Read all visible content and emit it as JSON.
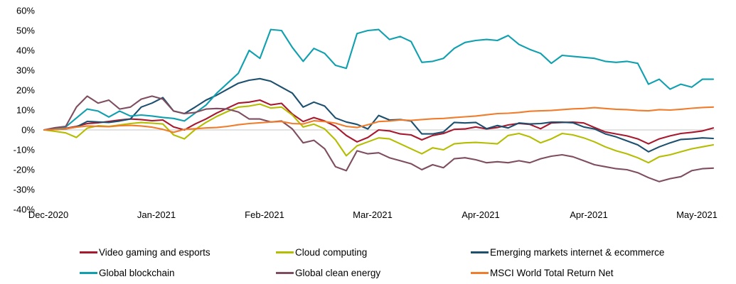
{
  "chart_data": {
    "type": "line",
    "title": "",
    "xlabel": "",
    "ylabel": "",
    "grid": "horizontal zero line only",
    "legend_position": "bottom",
    "y_axis": {
      "tick_labels": [
        "60%",
        "50%",
        "40%",
        "30%",
        "20%",
        "10%",
        "0%",
        "-10%",
        "-20%",
        "-30%",
        "-40%"
      ],
      "tick_values": [
        60,
        50,
        40,
        30,
        20,
        10,
        0,
        -10,
        -20,
        -30,
        -40
      ],
      "range": [
        -40,
        60
      ],
      "unit": "%"
    },
    "x_axis": {
      "tick_labels": [
        "Dec-2020",
        "Jan-2021",
        "Feb-2021",
        "Mar-2021",
        "Apr-2021",
        "Apr-2021",
        "May-2021"
      ]
    },
    "series": [
      {
        "name": "Video gaming and esports",
        "color": "#A6192E",
        "values": [
          0,
          0.3,
          0.8,
          1.8,
          3.2,
          3.6,
          4.3,
          5.0,
          5.5,
          5.2,
          4.6,
          5.0,
          1.5,
          0.0,
          3.0,
          5.5,
          8.5,
          11.0,
          13.5,
          14.0,
          15.0,
          12.6,
          13.4,
          8.0,
          4.2,
          6.2,
          4.5,
          1.8,
          -2.8,
          -6.0,
          -3.8,
          0.0,
          -0.5,
          -2.0,
          -2.5,
          -5.0,
          -2.8,
          -1.8,
          0.3,
          0.5,
          1.5,
          0.5,
          1.2,
          2.5,
          3.3,
          2.8,
          0.6,
          3.5,
          3.8,
          3.9,
          3.5,
          1.2,
          -1.0,
          -2.0,
          -3.0,
          -4.5,
          -7.0,
          -4.5,
          -3.0,
          -1.8,
          -1.2,
          -0.5,
          1.0
        ]
      },
      {
        "name": "Cloud computing",
        "color": "#B4BD00",
        "values": [
          0,
          -0.7,
          -1.5,
          -3.8,
          0.9,
          2.1,
          1.8,
          2.5,
          3.2,
          3.7,
          3.4,
          3.0,
          -2.5,
          -4.5,
          0.2,
          3.8,
          6.8,
          9.3,
          11.5,
          12.0,
          13.0,
          11.0,
          11.5,
          7.5,
          1.5,
          2.9,
          0.5,
          -5.0,
          -13.0,
          -8.0,
          -6.0,
          -4.0,
          -4.5,
          -7.0,
          -9.5,
          -12.0,
          -9.0,
          -10.0,
          -7.0,
          -6.5,
          -6.3,
          -6.6,
          -7.0,
          -2.8,
          -1.8,
          -3.5,
          -6.5,
          -4.5,
          -1.8,
          -2.5,
          -4.0,
          -6.0,
          -8.5,
          -10.5,
          -12.0,
          -14.0,
          -16.5,
          -13.5,
          -12.5,
          -11.0,
          -9.5,
          -8.5,
          -7.5
        ]
      },
      {
        "name": "Emerging markets internet & ecommerce",
        "color": "#1D506F",
        "values": [
          0,
          0.2,
          0.5,
          1.5,
          4.3,
          4.0,
          3.8,
          4.5,
          5.5,
          11.5,
          13.5,
          16.3,
          9.5,
          8.2,
          11.5,
          15.0,
          17.5,
          20.5,
          23.5,
          25.0,
          25.8,
          24.5,
          21.5,
          18.5,
          11.5,
          14.0,
          12.0,
          6.0,
          4.0,
          2.8,
          0.5,
          7.3,
          5.0,
          5.2,
          4.5,
          -2.0,
          -2.0,
          -1.0,
          3.8,
          3.5,
          3.8,
          0.6,
          2.2,
          1.0,
          3.5,
          3.0,
          3.2,
          3.9,
          3.9,
          3.6,
          1.5,
          0.5,
          -2.0,
          -3.5,
          -5.5,
          -7.5,
          -11.0,
          -8.5,
          -6.5,
          -4.8,
          -4.5,
          -4.0,
          -4.3
        ]
      },
      {
        "name": "Global blockchain",
        "color": "#0FA0AF",
        "values": [
          0,
          0.7,
          1.5,
          6.0,
          10.5,
          9.5,
          6.5,
          9.5,
          7.0,
          7.5,
          7.0,
          6.3,
          5.8,
          4.5,
          8.5,
          12.5,
          18.5,
          23.5,
          28.5,
          40.0,
          36.0,
          50.5,
          50.0,
          41.5,
          34.5,
          41.0,
          38.5,
          32.5,
          31.0,
          48.5,
          50.0,
          50.5,
          45.5,
          47.0,
          44.5,
          34.0,
          34.5,
          36.0,
          41.0,
          44.0,
          45.0,
          45.5,
          45.0,
          47.5,
          43.0,
          40.5,
          38.5,
          33.5,
          37.5,
          37.0,
          36.5,
          36.0,
          34.5,
          34.0,
          34.5,
          33.5,
          23.0,
          25.5,
          20.5,
          23.0,
          21.5,
          25.5,
          25.5
        ]
      },
      {
        "name": "Global clean energy",
        "color": "#7E4E60",
        "values": [
          0,
          1.1,
          1.8,
          11.5,
          17.0,
          13.5,
          15.0,
          10.5,
          11.5,
          15.5,
          17.0,
          15.5,
          9.5,
          8.2,
          8.8,
          10.5,
          10.8,
          10.5,
          9.0,
          5.5,
          5.5,
          4.0,
          4.5,
          0.5,
          -6.5,
          -5.2,
          -9.5,
          -18.5,
          -20.5,
          -10.5,
          -12.0,
          -11.5,
          -14.0,
          -15.5,
          -17.0,
          -20.0,
          -17.5,
          -19.0,
          -14.5,
          -14.0,
          -15.0,
          -16.5,
          -16.0,
          -16.5,
          -15.5,
          -16.5,
          -14.5,
          -13.2,
          -12.5,
          -13.5,
          -15.5,
          -17.5,
          -18.5,
          -19.5,
          -20.0,
          -21.5,
          -24.0,
          -26.0,
          -24.5,
          -23.5,
          -20.5,
          -19.5,
          -19.2
        ]
      },
      {
        "name": "MSCI World Total Return Net",
        "color": "#EF7D2C",
        "values": [
          0,
          0.2,
          0.6,
          1.4,
          2.0,
          1.8,
          1.6,
          2.1,
          2.3,
          2.0,
          1.4,
          0.3,
          -1.2,
          0.3,
          0.6,
          1.0,
          1.2,
          1.8,
          2.6,
          3.2,
          3.6,
          4.0,
          4.2,
          3.2,
          3.0,
          4.6,
          4.2,
          3.4,
          1.8,
          1.2,
          2.6,
          4.2,
          4.5,
          5.0,
          4.8,
          5.2,
          5.6,
          5.8,
          6.2,
          6.6,
          7.0,
          7.6,
          8.2,
          8.4,
          8.8,
          9.4,
          9.6,
          9.8,
          10.2,
          10.6,
          10.8,
          11.2,
          10.8,
          10.4,
          10.2,
          9.8,
          9.6,
          10.2,
          10.0,
          10.4,
          10.9,
          11.3,
          11.5
        ]
      }
    ],
    "legend": [
      {
        "label": "Video gaming and esports",
        "color": "#A6192E",
        "row": 0,
        "col": 0
      },
      {
        "label": "Cloud computing",
        "color": "#B4BD00",
        "row": 0,
        "col": 1
      },
      {
        "label": "Emerging markets internet & ecommerce",
        "color": "#1D506F",
        "row": 0,
        "col": 2
      },
      {
        "label": "Global blockchain",
        "color": "#0FA0AF",
        "row": 1,
        "col": 0
      },
      {
        "label": "Global clean energy",
        "color": "#7E4E60",
        "row": 1,
        "col": 1
      },
      {
        "label": "MSCI World Total Return Net",
        "color": "#EF7D2C",
        "row": 1,
        "col": 2
      }
    ],
    "zero_line_color": "#C6C6C6"
  }
}
